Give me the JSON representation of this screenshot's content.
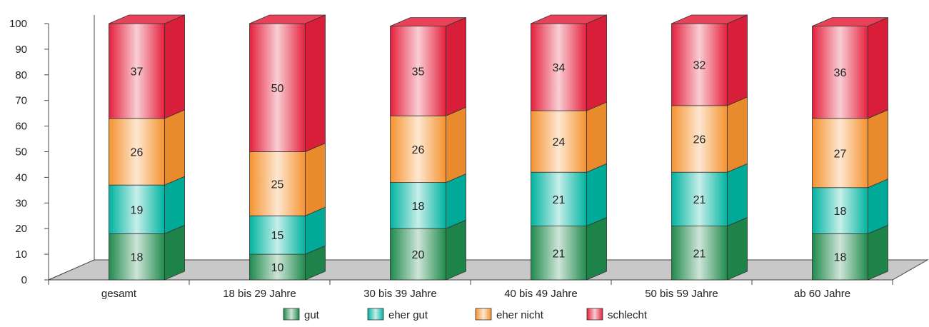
{
  "chart_data": {
    "type": "bar",
    "stacked": true,
    "three_d": true,
    "categories": [
      "gesamt",
      "18 bis 29 Jahre",
      "30 bis 39 Jahre",
      "40 bis 49 Jahre",
      "50 bis 59 Jahre",
      "ab 60 Jahre"
    ],
    "series": [
      {
        "name": "gut",
        "values": [
          18,
          10,
          20,
          21,
          21,
          18
        ],
        "color": "#1f8a4c"
      },
      {
        "name": "eher gut",
        "values": [
          19,
          15,
          18,
          21,
          21,
          18
        ],
        "color": "#00b3a0"
      },
      {
        "name": "eher nicht",
        "values": [
          26,
          25,
          26,
          24,
          26,
          27
        ],
        "color": "#f5922f"
      },
      {
        "name": "schlecht",
        "values": [
          37,
          50,
          35,
          34,
          32,
          36
        ],
        "color": "#e4203c"
      }
    ],
    "ylim": [
      0,
      100
    ],
    "yticks": [
      0,
      10,
      20,
      30,
      40,
      50,
      60,
      70,
      80,
      90,
      100
    ],
    "legend_position": "bottom",
    "grid": false
  }
}
